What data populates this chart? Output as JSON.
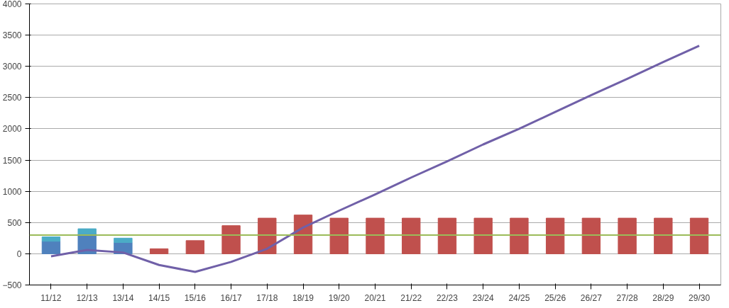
{
  "chart_data": {
    "type": "bar",
    "stacked": true,
    "categories": [
      "11/12",
      "12/13",
      "13/14",
      "14/15",
      "15/16",
      "16/17",
      "17/18",
      "18/19",
      "19/20",
      "20/21",
      "21/22",
      "22/23",
      "23/24",
      "24/25",
      "25/26",
      "26/27",
      "27/28",
      "28/29",
      "29/30"
    ],
    "series": [
      {
        "color": "#4f81bd",
        "values": [
          200,
          320,
          180,
          null,
          null,
          null,
          null,
          null,
          null,
          null,
          null,
          null,
          null,
          null,
          null,
          null,
          null,
          null,
          null
        ]
      },
      {
        "color": "#4bacc6",
        "values": [
          70,
          80,
          70,
          null,
          null,
          null,
          null,
          null,
          null,
          null,
          null,
          null,
          null,
          null,
          null,
          null,
          null,
          null,
          null
        ]
      },
      {
        "color": "#c0504d",
        "values": [
          null,
          null,
          null,
          80,
          210,
          450,
          570,
          620,
          570,
          570,
          570,
          570,
          570,
          570,
          570,
          570,
          570,
          570,
          570
        ]
      },
      {
        "type": "line",
        "color": "#7060a8",
        "values": [
          -40,
          60,
          20,
          -180,
          -290,
          -130,
          80,
          420,
          690,
          950,
          1220,
          1480,
          1750,
          2000,
          2270,
          2540,
          2800,
          3070,
          3330
        ]
      }
    ],
    "ref_lines": [
      {
        "axis": "y",
        "value": 300,
        "color": "#9bbb59"
      }
    ],
    "ylim": [
      -500,
      4000
    ],
    "yticks": [
      -500,
      0,
      500,
      1000,
      1500,
      2000,
      2500,
      3000,
      3500,
      4000
    ],
    "grid": "y"
  }
}
